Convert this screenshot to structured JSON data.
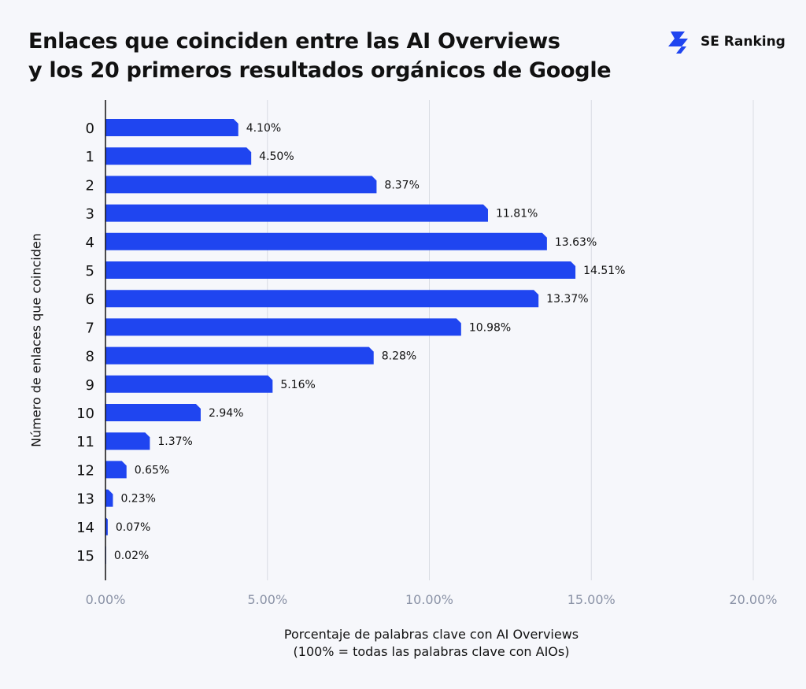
{
  "header": {
    "title_line1": "Enlaces que coinciden entre las AI Overviews",
    "title_line2": "y los 20 primeros resultados orgánicos de Google",
    "brand_name": "SE Ranking",
    "brand_color": "#1f45f0"
  },
  "chart_data": {
    "type": "bar",
    "orientation": "horizontal",
    "categories": [
      "0",
      "1",
      "2",
      "3",
      "4",
      "5",
      "6",
      "7",
      "8",
      "9",
      "10",
      "11",
      "12",
      "13",
      "14",
      "15"
    ],
    "values": [
      4.1,
      4.5,
      8.37,
      11.81,
      13.63,
      14.51,
      13.37,
      10.98,
      8.28,
      5.16,
      2.94,
      1.37,
      0.65,
      0.23,
      0.07,
      0.02
    ],
    "value_labels": [
      "4.10%",
      "4.50%",
      "8.37%",
      "11.81%",
      "13.63%",
      "14.51%",
      "13.37%",
      "10.98%",
      "8.28%",
      "5.16%",
      "2.94%",
      "1.37%",
      "0.65%",
      "0.23%",
      "0.07%",
      "0.02%"
    ],
    "x_ticks": [
      0,
      5,
      10,
      15,
      20
    ],
    "x_tick_labels": [
      "0.00%",
      "5.00%",
      "10.00%",
      "15.00%",
      "20.00%"
    ],
    "xlim": [
      0,
      20
    ],
    "xlabel_line1": "Porcentaje de palabras clave con AI Overviews",
    "xlabel_line2": "(100% = todas las palabras clave con AIOs)",
    "ylabel": "Número de enlaces que coinciden",
    "bar_color": "#1f45f0",
    "grid": "vertical",
    "legend": "none"
  }
}
